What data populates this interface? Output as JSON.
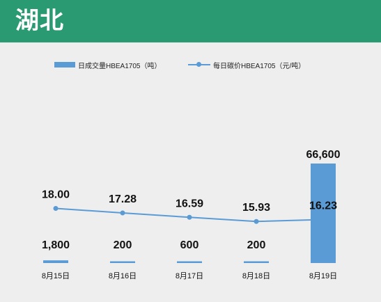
{
  "header": {
    "title": "湖北"
  },
  "colors": {
    "header_bg": "#2a9a72",
    "bar": "#5b9bd5",
    "line": "#5b9bd5",
    "background": "#eeeeee"
  },
  "chart_data": {
    "type": "bar+line",
    "title": "",
    "categories": [
      "8月15日",
      "8月16日",
      "8月17日",
      "8月18日",
      "8月19日"
    ],
    "series": [
      {
        "name": "日成交量HBEA1705（吨）",
        "kind": "bar",
        "values": [
          1800,
          200,
          600,
          200,
          66600
        ],
        "labels": [
          "1,800",
          "200",
          "600",
          "200",
          "66,600"
        ]
      },
      {
        "name": "每日碳价HBEA1705（元/吨）",
        "kind": "line",
        "values": [
          18.0,
          17.28,
          16.59,
          15.93,
          16.23
        ],
        "labels": [
          "18.00",
          "17.28",
          "16.59",
          "15.93",
          "16.23"
        ]
      }
    ],
    "legend_position": "top",
    "grid": false
  }
}
